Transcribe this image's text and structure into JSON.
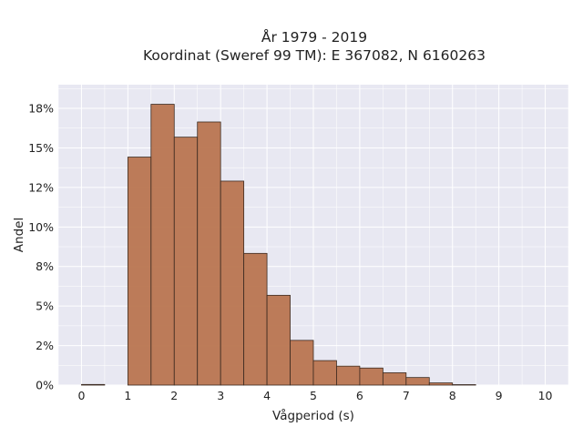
{
  "chart_data": {
    "type": "bar",
    "title": "År 1979 - 2019",
    "subtitle": "Koordinat (Sweref 99 TM): E 367082, N 6160263",
    "xlabel": "Vågperiod (s)",
    "ylabel": "Andel",
    "xlim": [
      -0.5,
      10.5
    ],
    "ylim": [
      0,
      0.19
    ],
    "x_ticks": [
      "0",
      "1",
      "2",
      "3",
      "4",
      "5",
      "6",
      "7",
      "8",
      "9",
      "10"
    ],
    "y_ticks": [
      "0%",
      "2%",
      "5%",
      "8%",
      "10%",
      "12%",
      "15%",
      "18%"
    ],
    "y_tick_values": [
      0,
      0.025,
      0.05,
      0.075,
      0.1,
      0.125,
      0.15,
      0.175
    ],
    "bin_width": 0.5,
    "bins": [
      {
        "start": 0.0,
        "value": 0.0004
      },
      {
        "start": 0.5,
        "value": 0.0
      },
      {
        "start": 1.0,
        "value": 0.1442
      },
      {
        "start": 1.5,
        "value": 0.1776
      },
      {
        "start": 2.0,
        "value": 0.1568
      },
      {
        "start": 2.5,
        "value": 0.1664
      },
      {
        "start": 3.0,
        "value": 0.129
      },
      {
        "start": 3.5,
        "value": 0.0833
      },
      {
        "start": 4.0,
        "value": 0.0568
      },
      {
        "start": 4.5,
        "value": 0.0283
      },
      {
        "start": 5.0,
        "value": 0.0155
      },
      {
        "start": 5.5,
        "value": 0.012
      },
      {
        "start": 6.0,
        "value": 0.0108
      },
      {
        "start": 6.5,
        "value": 0.0078
      },
      {
        "start": 7.0,
        "value": 0.0048
      },
      {
        "start": 7.5,
        "value": 0.0014
      },
      {
        "start": 8.0,
        "value": 0.0003
      }
    ],
    "grid": true,
    "colors": {
      "bar_fill": "#b97550",
      "bar_edge": "#3b2a20",
      "plot_bg": "#e8e8f2",
      "grid": "#ffffff"
    }
  }
}
